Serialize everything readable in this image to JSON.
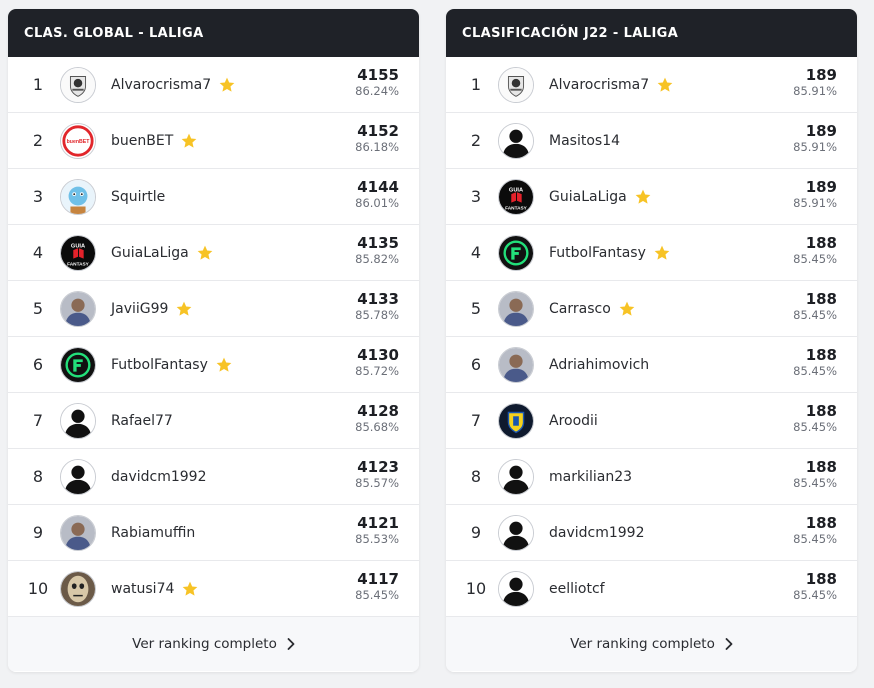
{
  "colors": {
    "header_bg": "#1f2228",
    "star": "#f7c325",
    "page_bg": "#f1f2f4"
  },
  "global": {
    "title": "CLAS. GLOBAL - LALIGA",
    "footer_link": "Ver ranking completo",
    "rows": [
      {
        "pos": "1",
        "name": "Alvarocrisma7",
        "star": true,
        "avatar": "crest-icon",
        "points": "4155",
        "pct": "86.24%"
      },
      {
        "pos": "2",
        "name": "buenBET",
        "star": true,
        "avatar": "buenbet-logo-icon",
        "points": "4152",
        "pct": "86.18%"
      },
      {
        "pos": "3",
        "name": "Squirtle",
        "star": false,
        "avatar": "squirtle-icon",
        "points": "4144",
        "pct": "86.01%"
      },
      {
        "pos": "4",
        "name": "GuiaLaLiga",
        "star": true,
        "avatar": "guia-fantasy-logo-icon",
        "points": "4135",
        "pct": "85.82%"
      },
      {
        "pos": "5",
        "name": "JaviiG99",
        "star": true,
        "avatar": "photo-avatar-icon",
        "points": "4133",
        "pct": "85.78%"
      },
      {
        "pos": "6",
        "name": "FutbolFantasy",
        "star": true,
        "avatar": "futbolfantasy-logo-icon",
        "points": "4130",
        "pct": "85.72%"
      },
      {
        "pos": "7",
        "name": "Rafael77",
        "star": false,
        "avatar": "default-user-icon",
        "points": "4128",
        "pct": "85.68%"
      },
      {
        "pos": "8",
        "name": "davidcm1992",
        "star": false,
        "avatar": "default-user-icon",
        "points": "4123",
        "pct": "85.57%"
      },
      {
        "pos": "9",
        "name": "Rabiamuffin",
        "star": false,
        "avatar": "photo-avatar-icon",
        "points": "4121",
        "pct": "85.53%"
      },
      {
        "pos": "10",
        "name": "watusi74",
        "star": true,
        "avatar": "mask-avatar-icon",
        "points": "4117",
        "pct": "85.45%"
      }
    ]
  },
  "matchday": {
    "title": "CLASIFICACIÓN J22 - LALIGA",
    "footer_link": "Ver ranking completo",
    "rows": [
      {
        "pos": "1",
        "name": "Alvarocrisma7",
        "star": true,
        "avatar": "crest-icon",
        "points": "189",
        "pct": "85.91%"
      },
      {
        "pos": "2",
        "name": "Masitos14",
        "star": false,
        "avatar": "default-user-icon",
        "points": "189",
        "pct": "85.91%"
      },
      {
        "pos": "3",
        "name": "GuiaLaLiga",
        "star": true,
        "avatar": "guia-fantasy-logo-icon",
        "points": "189",
        "pct": "85.91%"
      },
      {
        "pos": "4",
        "name": "FutbolFantasy",
        "star": true,
        "avatar": "futbolfantasy-logo-icon",
        "points": "188",
        "pct": "85.45%"
      },
      {
        "pos": "5",
        "name": "Carrasco",
        "star": true,
        "avatar": "photo-avatar-icon",
        "points": "188",
        "pct": "85.45%"
      },
      {
        "pos": "6",
        "name": "Adriahimovich",
        "star": false,
        "avatar": "photo-avatar-icon",
        "points": "188",
        "pct": "85.45%"
      },
      {
        "pos": "7",
        "name": "Aroodii",
        "star": false,
        "avatar": "club-badge-icon",
        "points": "188",
        "pct": "85.45%"
      },
      {
        "pos": "8",
        "name": "markilian23",
        "star": false,
        "avatar": "default-user-icon",
        "points": "188",
        "pct": "85.45%"
      },
      {
        "pos": "9",
        "name": "davidcm1992",
        "star": false,
        "avatar": "default-user-icon",
        "points": "188",
        "pct": "85.45%"
      },
      {
        "pos": "10",
        "name": "eelliotcf",
        "star": false,
        "avatar": "default-user-icon",
        "points": "188",
        "pct": "85.45%"
      }
    ]
  }
}
